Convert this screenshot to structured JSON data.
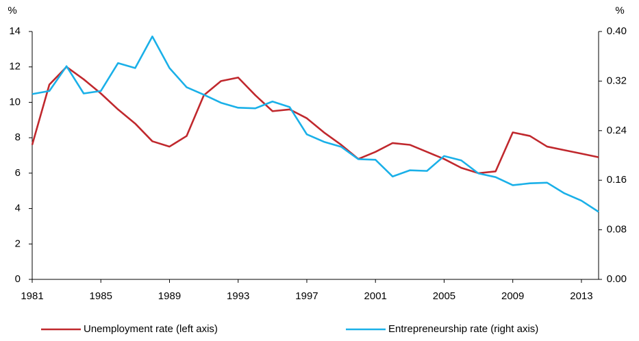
{
  "chart_data": {
    "type": "line",
    "y_label": "%",
    "y2_label": "%",
    "x": [
      1981,
      1982,
      1983,
      1984,
      1985,
      1986,
      1987,
      1988,
      1989,
      1990,
      1991,
      1992,
      1993,
      1994,
      1995,
      1996,
      1997,
      1998,
      1999,
      2000,
      2001,
      2002,
      2003,
      2004,
      2005,
      2006,
      2007,
      2008,
      2009,
      2010,
      2011,
      2012,
      2013,
      2014
    ],
    "xlim": [
      1981,
      2014
    ],
    "xticks": [
      1981,
      1985,
      1989,
      1993,
      1997,
      2001,
      2005,
      2009,
      2013
    ],
    "ylim": [
      0,
      14
    ],
    "yticks": [
      0,
      2,
      4,
      6,
      8,
      10,
      12,
      14
    ],
    "y2lim": [
      0,
      0.4
    ],
    "y2ticks": [
      {
        "value": 0,
        "label": "0.00"
      },
      0.08,
      0.16,
      0.24,
      0.32,
      {
        "value": 0.4,
        "label": "0.40"
      }
    ],
    "legend": "bottom",
    "series": [
      {
        "name": "Unemployment rate (left axis)",
        "color": "#c0282d",
        "values": [
          7.6,
          11.0,
          12.0,
          11.3,
          10.5,
          9.6,
          8.8,
          7.8,
          7.5,
          8.1,
          10.4,
          11.2,
          11.4,
          10.4,
          9.5,
          9.6,
          9.1,
          8.3,
          7.6,
          6.8,
          7.2,
          7.7,
          7.6,
          7.2,
          6.8,
          6.3,
          6.0,
          6.1,
          8.3,
          8.1,
          7.5,
          7.3,
          7.1,
          6.9
        ]
      },
      {
        "name": "Entrepreneurship rate (right axis)",
        "color": "#1ab0e8",
        "axis": "y2",
        "values": [
          0.299,
          0.304,
          0.344,
          0.3,
          0.304,
          0.349,
          0.341,
          0.392,
          0.341,
          0.31,
          0.298,
          0.285,
          0.277,
          0.276,
          0.287,
          0.278,
          0.234,
          0.222,
          0.214,
          0.194,
          0.193,
          0.166,
          0.176,
          0.175,
          0.199,
          0.192,
          0.171,
          0.165,
          0.152,
          0.155,
          0.156,
          0.139,
          0.127,
          0.109
        ]
      }
    ]
  }
}
